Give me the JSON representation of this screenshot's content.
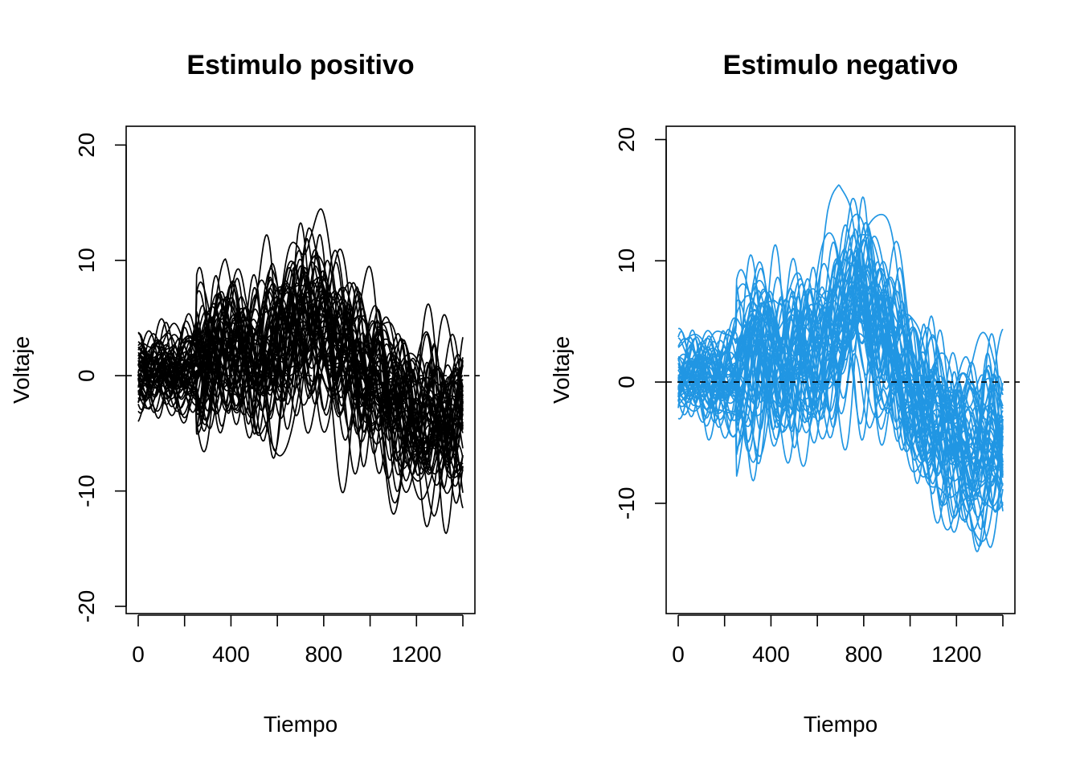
{
  "chart_data": [
    {
      "type": "line",
      "title": "Estimulo positivo",
      "xlabel": "Tiempo",
      "ylabel": "Voltaje",
      "xlim": [
        0,
        1400
      ],
      "ylim": [
        -20,
        21
      ],
      "xticks": [
        0,
        200,
        400,
        600,
        800,
        1000,
        1200,
        1400
      ],
      "xtick_labels": [
        "0",
        "400",
        "800",
        "1200"
      ],
      "xtick_label_values": [
        0,
        400,
        800,
        1200
      ],
      "yticks": [
        -20,
        -10,
        0,
        10,
        20
      ],
      "ytick_labels": [
        "-20",
        "-10",
        "0",
        "10",
        "20"
      ],
      "reference_line": {
        "y": 0,
        "style": "dashed",
        "color": "#000000"
      },
      "line_color": "#000000",
      "n_series": 50,
      "x": [
        0,
        50,
        100,
        150,
        200,
        250,
        300,
        350,
        400,
        450,
        500,
        550,
        600,
        650,
        700,
        750,
        800,
        850,
        900,
        950,
        1000,
        1050,
        1100,
        1150,
        1200,
        1250,
        1300,
        1350,
        1400
      ],
      "mean_profile": [
        0,
        0.3,
        0.2,
        -0.3,
        0.4,
        0.8,
        1.2,
        2.5,
        2.8,
        1.2,
        0.5,
        1.5,
        2.5,
        4.0,
        5.5,
        6.0,
        5.0,
        3.5,
        2.0,
        0.8,
        -0.5,
        -1.8,
        -2.8,
        -3.8,
        -4.5,
        -5.0,
        -5.2,
        -5.0,
        -4.5
      ],
      "grid": false,
      "legend": "none"
    },
    {
      "type": "line",
      "title": "Estimulo negativo",
      "xlabel": "Tiempo",
      "ylabel": "Voltaje",
      "xlim": [
        0,
        1400
      ],
      "ylim": [
        -18.5,
        20.5
      ],
      "xticks": [
        0,
        200,
        400,
        600,
        800,
        1000,
        1200,
        1400
      ],
      "xtick_labels": [
        "0",
        "400",
        "800",
        "1200"
      ],
      "xtick_label_values": [
        0,
        400,
        800,
        1200
      ],
      "yticks": [
        -10,
        0,
        10,
        20
      ],
      "ytick_labels": [
        "-10",
        "0",
        "10",
        "20"
      ],
      "reference_line": {
        "y": 0,
        "style": "dashed",
        "color": "#000000"
      },
      "line_color": "#2196E3",
      "n_series": 50,
      "x": [
        0,
        50,
        100,
        150,
        200,
        250,
        300,
        350,
        400,
        450,
        500,
        550,
        600,
        650,
        700,
        750,
        800,
        850,
        900,
        950,
        1000,
        1050,
        1100,
        1150,
        1200,
        1250,
        1300,
        1350,
        1400
      ],
      "mean_profile": [
        0,
        0.5,
        0.3,
        0,
        0.5,
        1.2,
        2.5,
        3.5,
        3.2,
        2.0,
        1.0,
        0.5,
        1.5,
        4.0,
        6.5,
        8.0,
        7.5,
        5.5,
        3.5,
        1.5,
        -0.5,
        -2.0,
        -3.2,
        -4.2,
        -5.0,
        -5.8,
        -6.0,
        -5.5,
        -5.0
      ],
      "grid": false,
      "legend": "none"
    }
  ]
}
